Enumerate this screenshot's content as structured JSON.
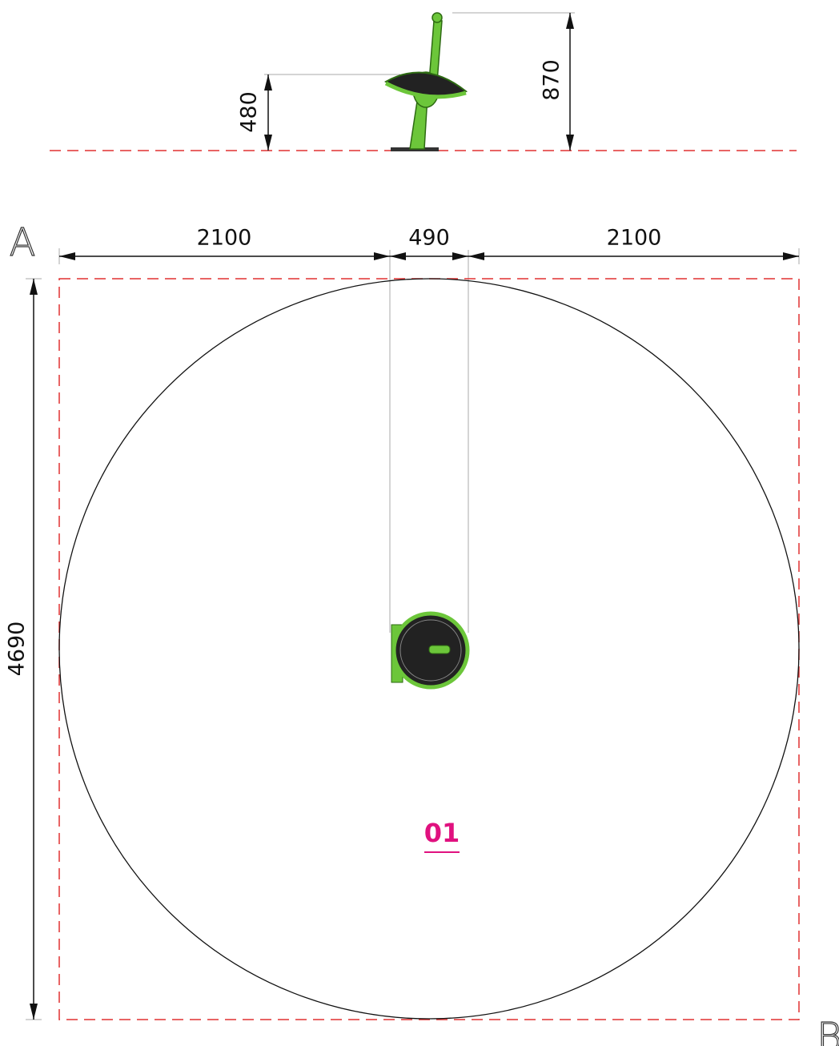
{
  "side_view": {
    "seat_height": "480",
    "total_height": "870"
  },
  "plan": {
    "left_clearance": "2100",
    "seat_width": "490",
    "right_clearance": "2100",
    "depth": "4690",
    "corner_a": "A",
    "corner_b": "B",
    "zone": "01"
  }
}
